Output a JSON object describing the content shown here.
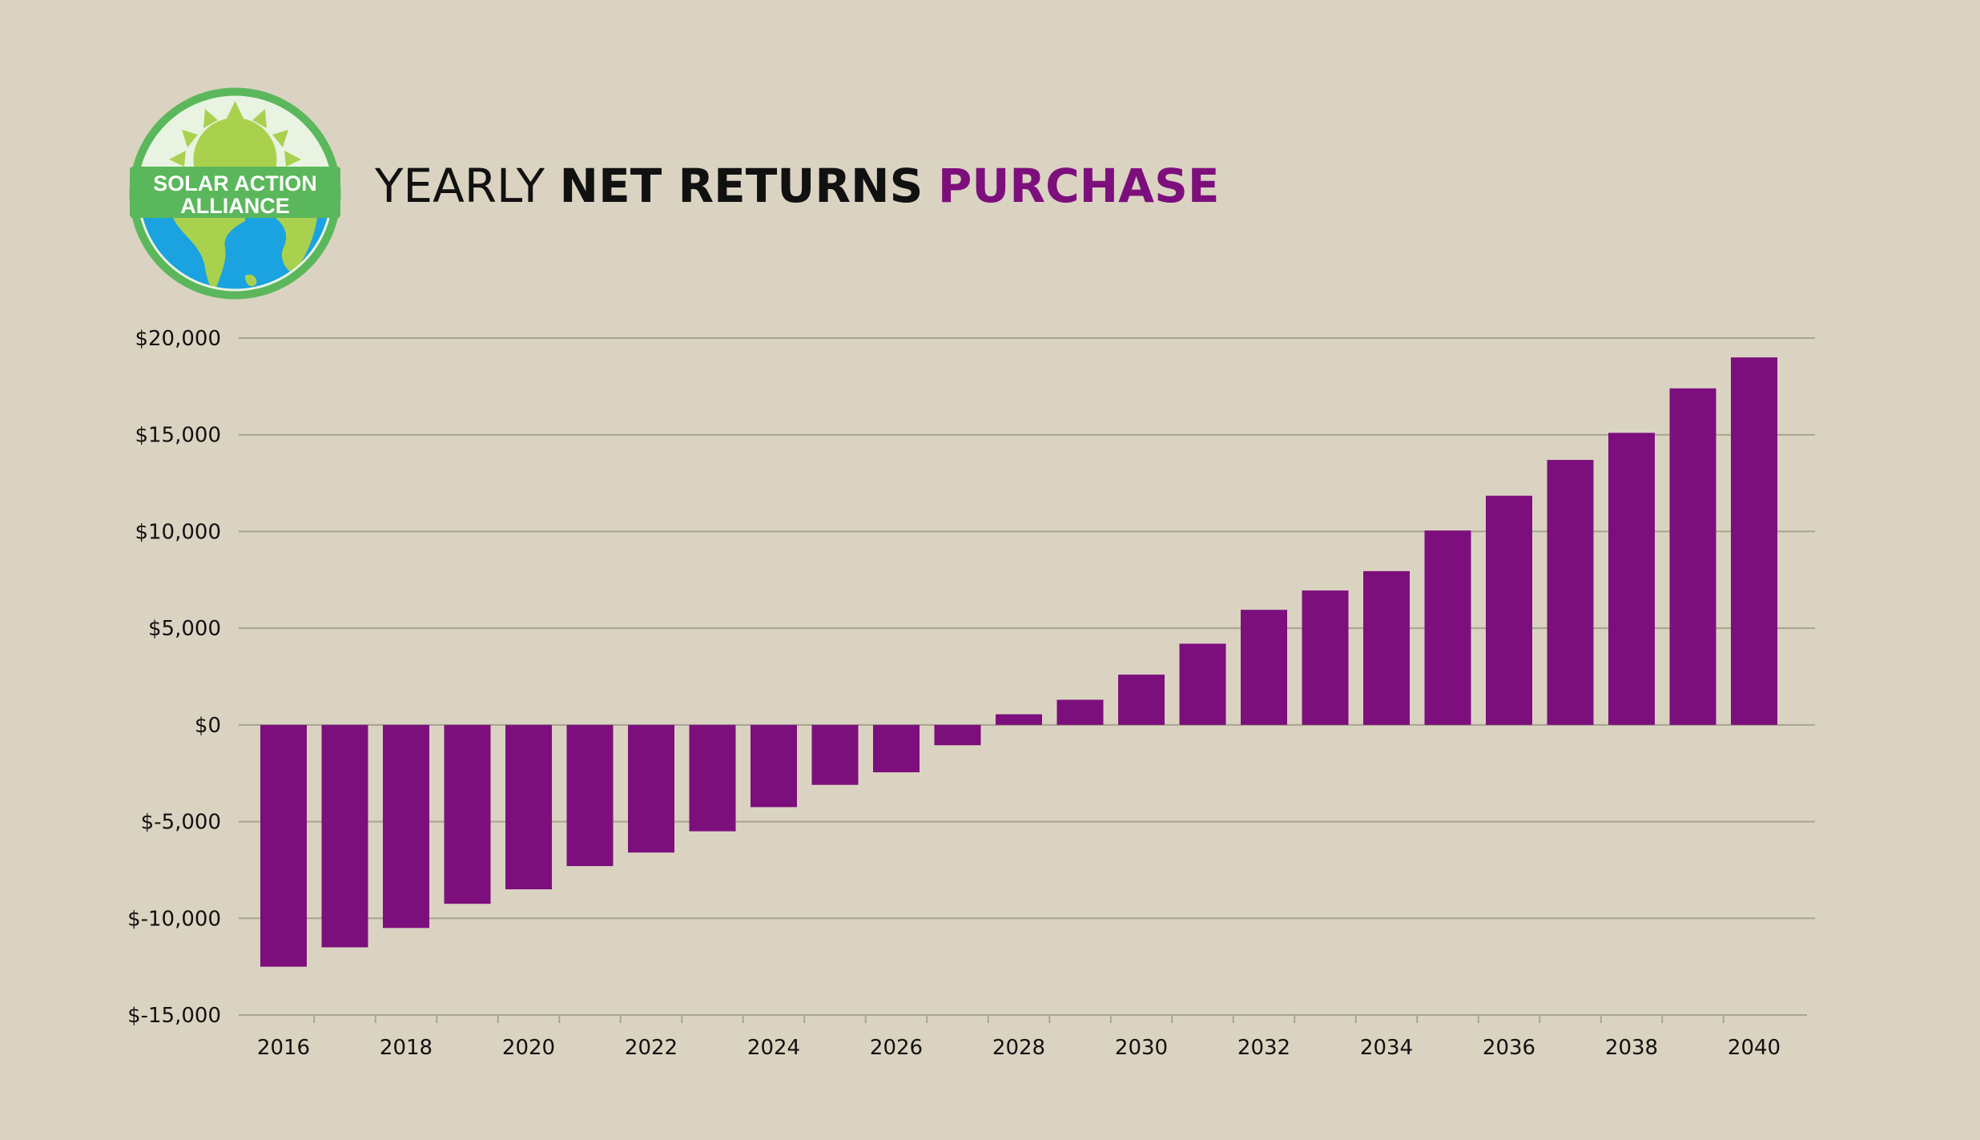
{
  "logo": {
    "line1": "SOLAR ACTION",
    "line2": "ALLIANCE",
    "icon": "sun-earth-icon"
  },
  "title": {
    "light": "YEARLY",
    "bold": "NET RETURNS",
    "accent": "PURCHASE"
  },
  "colors": {
    "background": "#dad3c1",
    "bar": "#7d0f7d",
    "accent": "#7d0f7d",
    "gridline": "#a9a391",
    "logo_green": "#5bb75b",
    "logo_lime": "#a9d14e",
    "logo_blue": "#1aa3e0"
  },
  "chart_data": {
    "type": "bar",
    "categories": [
      "2016",
      "2017",
      "2018",
      "2019",
      "2020",
      "2021",
      "2022",
      "2023",
      "2024",
      "2025",
      "2026",
      "2027",
      "2028",
      "2029",
      "2030",
      "2031",
      "2032",
      "2033",
      "2034",
      "2035",
      "2036",
      "2037",
      "2038",
      "2039",
      "2040"
    ],
    "series": [
      {
        "values": [
          -12500,
          -11500,
          -10500,
          -9250,
          -8500,
          -7300,
          -6600,
          -5500,
          -4250,
          -3100,
          -2450,
          -1050,
          550,
          1300,
          2600,
          4200,
          5950,
          6950,
          7950,
          10050,
          11850,
          13700,
          15100,
          17400,
          19000
        ]
      }
    ],
    "xtick_labels": [
      "2016",
      "2018",
      "2020",
      "2022",
      "2024",
      "2026",
      "2028",
      "2030",
      "2032",
      "2034",
      "2036",
      "2038",
      "2040"
    ],
    "ytick_values": [
      20000,
      15000,
      10000,
      5000,
      0,
      -5000,
      -10000,
      -15000
    ],
    "ytick_labels": [
      "$20,000",
      "$15,000",
      "$10,000",
      "$5,000",
      "$0",
      "$-5,000",
      "$-10,000",
      "$-15,000"
    ],
    "ylim": [
      -15000,
      20000
    ],
    "grid": true,
    "legend": "none"
  }
}
